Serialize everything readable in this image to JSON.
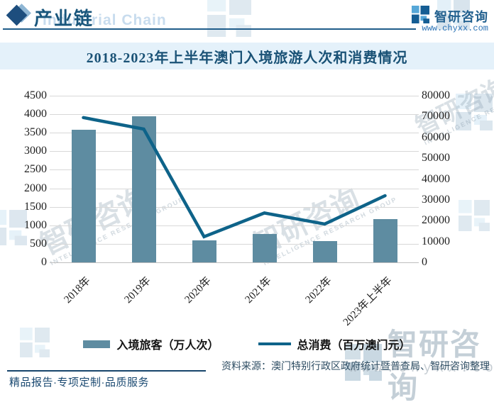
{
  "header": {
    "section_title": "产业链",
    "section_title_en": "Industrial Chain",
    "brand": "智研咨询",
    "website": "www.chyxx.com"
  },
  "chart_title": "2018-2023年上半年澳门入境旅游人次和消费情况",
  "chart_data": {
    "type": "bar+line",
    "title": "2018-2023年上半年澳门入境旅游人次和消费情况",
    "categories": [
      "2018年",
      "2019年",
      "2020年",
      "2021年",
      "2022年",
      "2023年上半年"
    ],
    "series": [
      {
        "name": "入境旅客（万人次）",
        "type": "bar",
        "axis": "left",
        "color": "#5e8ca1",
        "values": [
          3580,
          3940,
          590,
          770,
          570,
          1160
        ]
      },
      {
        "name": "总消费（百万澳门元）",
        "type": "line",
        "axis": "right",
        "color": "#0e6389",
        "values": [
          69500,
          64000,
          12300,
          23700,
          18400,
          32000
        ]
      }
    ],
    "left_axis": {
      "min": 0,
      "max": 4500,
      "step": 500
    },
    "right_axis": {
      "min": 0,
      "max": 80000,
      "step": 10000
    },
    "grid": true,
    "legend_position": "bottom"
  },
  "footer": {
    "tagline": "精品报告·专项定制·品质服务",
    "source": "资料来源：澳门特别行政区政府统计暨普查局、智研咨询整理"
  },
  "watermark": {
    "brand": "智研咨询",
    "subtext": "INTELLIGENCE RESEARCH GROUP",
    "website": "www.chyxx.com"
  },
  "colors": {
    "bar": "#5e8ca1",
    "line": "#0e6389",
    "title_text": "#1a5276",
    "title_band_bg": "#e4f1fa",
    "header_accent": "#19567c",
    "link_blue": "#2a72b5",
    "footer_text": "#1a4971",
    "source_text": "#2e4d63",
    "gridline": "#d8d8d8"
  }
}
